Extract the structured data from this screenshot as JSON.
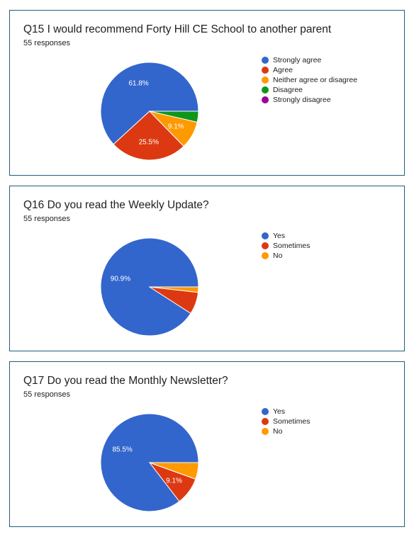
{
  "colors": [
    "#3366cc",
    "#dc3912",
    "#ff9900",
    "#109618",
    "#990099"
  ],
  "charts": [
    {
      "title": "Q15 I would recommend Forty Hill CE School to another parent",
      "responses": "55 responses",
      "legend": [
        "Strongly agree",
        "Agree",
        "Neither agree or disagree",
        "Disagree",
        "Strongly disagree"
      ]
    },
    {
      "title": "Q16 Do you read the Weekly Update?",
      "responses": "55 responses",
      "legend": [
        "Yes",
        "Sometimes",
        "No"
      ]
    },
    {
      "title": "Q17 Do you read the Monthly Newsletter?",
      "responses": "55 responses",
      "legend": [
        "Yes",
        "Sometimes",
        "No"
      ]
    }
  ],
  "chart_data": [
    {
      "type": "pie",
      "title": "Q15 I would recommend Forty Hill CE School to another parent",
      "subtitle": "55 responses",
      "legend_position": "right",
      "slices": [
        {
          "name": "Strongly agree",
          "value": 61.8,
          "label": "61.8%"
        },
        {
          "name": "Agree",
          "value": 25.5,
          "label": "25.5%"
        },
        {
          "name": "Neither agree or disagree",
          "value": 9.1,
          "label": "9.1%"
        },
        {
          "name": "Disagree",
          "value": 3.6,
          "label": ""
        },
        {
          "name": "Strongly disagree",
          "value": 0,
          "label": ""
        }
      ]
    },
    {
      "type": "pie",
      "title": "Q16 Do you read the Weekly Update?",
      "subtitle": "55 responses",
      "legend_position": "right",
      "slices": [
        {
          "name": "Yes",
          "value": 90.9,
          "label": "90.9%"
        },
        {
          "name": "Sometimes",
          "value": 7.3,
          "label": ""
        },
        {
          "name": "No",
          "value": 1.8,
          "label": ""
        }
      ]
    },
    {
      "type": "pie",
      "title": "Q17 Do you read the Monthly Newsletter?",
      "subtitle": "55 responses",
      "legend_position": "right",
      "slices": [
        {
          "name": "Yes",
          "value": 85.5,
          "label": "85.5%"
        },
        {
          "name": "Sometimes",
          "value": 9.1,
          "label": "9.1%"
        },
        {
          "name": "No",
          "value": 5.5,
          "label": ""
        }
      ]
    }
  ]
}
